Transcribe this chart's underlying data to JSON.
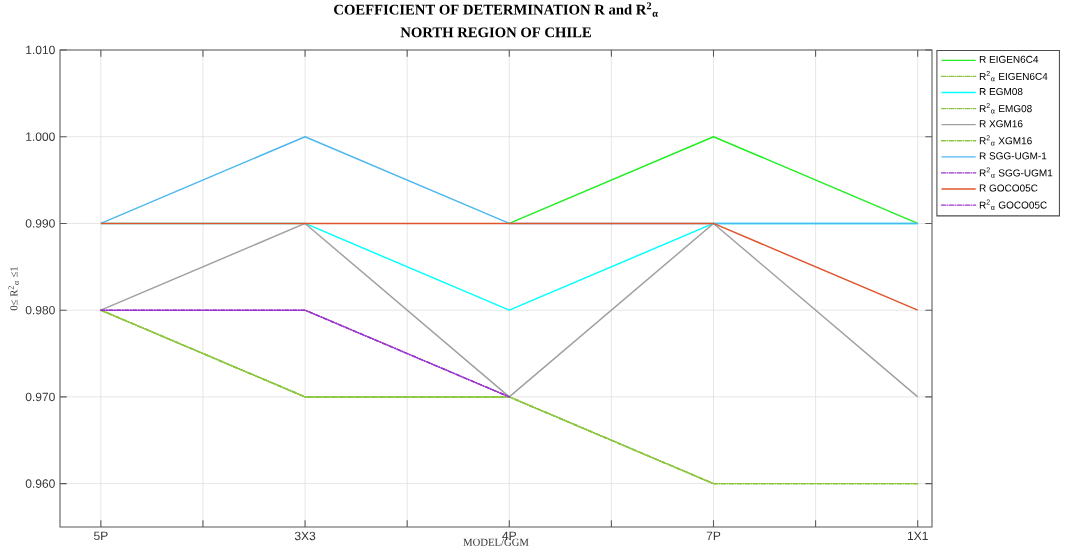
{
  "chart_data": {
    "type": "line",
    "title": "COEFFICIENT OF DETERMINATION R and R$^{2}$$_{α}$",
    "subtitle": "NORTH REGION OF CHILE",
    "xlabel": "MODEL/GGM",
    "ylabel": "0≤ R$^{2}$$_{α}$ ≤1",
    "categories": [
      "5P",
      "3X3",
      "4P",
      "7P",
      "1X1"
    ],
    "ylim": [
      0.955,
      1.01
    ],
    "yticks": [
      {
        "value": 0.96,
        "label": "0.960"
      },
      {
        "value": 0.97,
        "label": "0.970"
      },
      {
        "value": 0.98,
        "label": "0.980"
      },
      {
        "value": 0.99,
        "label": "0.990"
      },
      {
        "value": 1.0,
        "label": "1.000"
      },
      {
        "value": 1.01,
        "label": "1.010"
      }
    ],
    "grid": true,
    "legend": "top right",
    "series": [
      {
        "name": "R EIGEN6C4",
        "color": "#22ee22",
        "line_style": "solid",
        "values": [
          null,
          null,
          0.99,
          1.0,
          0.99
        ]
      },
      {
        "name": "R$^{2}$$_{α}$ EIGEN6C4",
        "color": "#8cc63f",
        "line_style": "dashdot",
        "values": [
          0.98,
          0.97,
          0.97,
          0.96,
          0.96
        ]
      },
      {
        "name": "R EGM08",
        "color": "#00ffff",
        "line_style": "solid",
        "values": [
          0.99,
          0.99,
          0.98,
          0.99,
          0.99
        ]
      },
      {
        "name": "R$^{2}$$_{α}$ EMG08",
        "color": "#8cc63f",
        "line_style": "dashdot",
        "values": [
          0.98,
          0.97,
          0.97,
          0.96,
          0.96
        ]
      },
      {
        "name": "R XGM16",
        "color": "#a0a0a0",
        "line_style": "solid",
        "values": [
          0.98,
          0.99,
          0.97,
          0.99,
          0.97
        ]
      },
      {
        "name": "R$^{2}$$_{α}$ XGM16",
        "color": "#8cc63f",
        "line_style": "dashdot",
        "values": [
          0.98,
          0.97,
          0.97,
          0.96,
          0.96
        ]
      },
      {
        "name": "R SGG-UGM-1",
        "color": "#4db8f0",
        "line_style": "solid",
        "values": [
          0.99,
          1.0,
          0.99,
          0.99,
          0.99
        ]
      },
      {
        "name": "R$^{2}$$_{α}$ SGG-UGM1",
        "color": "#9933cc",
        "line_style": "dashdot",
        "values": [
          0.98,
          0.98,
          0.97,
          null,
          null
        ]
      },
      {
        "name": "R GOCO05C",
        "color": "#e0542a",
        "line_style": "solid",
        "values": [
          0.99,
          0.99,
          0.99,
          0.99,
          0.98
        ]
      },
      {
        "name": "R$^{2}$$_{α}$ GOCO05C",
        "color": "#9933cc",
        "line_style": "dashdot",
        "values": [
          0.98,
          0.98,
          0.97,
          null,
          null
        ]
      }
    ]
  }
}
